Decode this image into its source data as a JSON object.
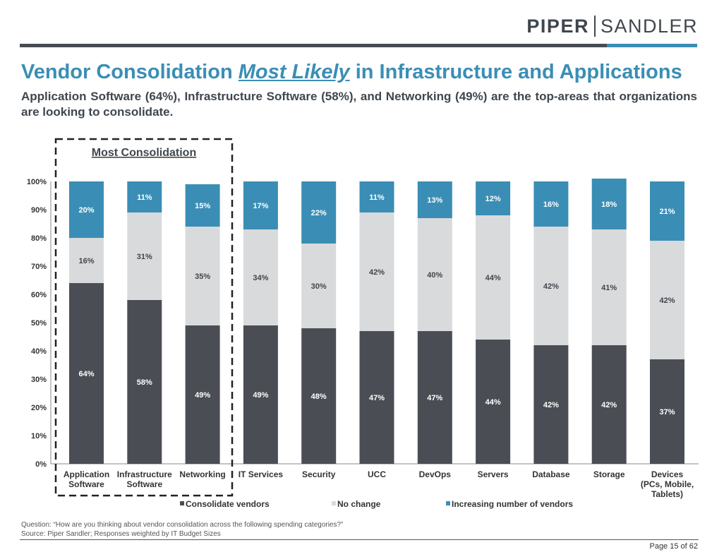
{
  "header": {
    "logo_left": "PIPER",
    "logo_right": "SANDLER",
    "title_pre": "Vendor Consolidation ",
    "title_em": "Most Likely",
    "title_post": " in Infrastructure and Applications",
    "subtitle": "Application Software (64%), Infrastructure Software (58%), and Networking (49%) are the top-areas that organizations are looking to consolidate."
  },
  "colors": {
    "consolidate": "#4a4e54",
    "no_change": "#d9dadb",
    "increasing": "#3a8eb5",
    "accent": "#3a8eb5"
  },
  "chart_data": {
    "type": "bar",
    "stacked": true,
    "percent": true,
    "categories": [
      [
        "Application",
        "Software"
      ],
      [
        "Infrastructure",
        "Software"
      ],
      [
        "Networking"
      ],
      [
        "IT Services"
      ],
      [
        "Security"
      ],
      [
        "UCC"
      ],
      [
        "DevOps"
      ],
      [
        "Servers"
      ],
      [
        "Database"
      ],
      [
        "Storage"
      ],
      [
        "Devices",
        "(PCs, Mobile,",
        "Tablets)"
      ]
    ],
    "series": [
      {
        "name": "Consolidate vendors",
        "values": [
          64,
          58,
          49,
          49,
          48,
          47,
          47,
          44,
          42,
          42,
          37
        ]
      },
      {
        "name": "No change",
        "values": [
          16,
          31,
          35,
          34,
          30,
          42,
          40,
          44,
          42,
          41,
          42
        ]
      },
      {
        "name": "Increasing number of vendors",
        "values": [
          20,
          11,
          15,
          17,
          22,
          11,
          13,
          12,
          16,
          18,
          21
        ]
      }
    ],
    "yticks": [
      "0%",
      "10%",
      "20%",
      "30%",
      "40%",
      "50%",
      "60%",
      "70%",
      "80%",
      "90%",
      "100%"
    ],
    "ylim": [
      0,
      100
    ],
    "legend_position": "bottom",
    "annotation": "Most Consolidation"
  },
  "footer": {
    "question": "Question: “How are you thinking about vendor consolidation across the following spending categories?”",
    "source": "Source: Piper Sandler; Responses weighted by IT Budget Sizes",
    "page": "Page 15 of 62"
  }
}
